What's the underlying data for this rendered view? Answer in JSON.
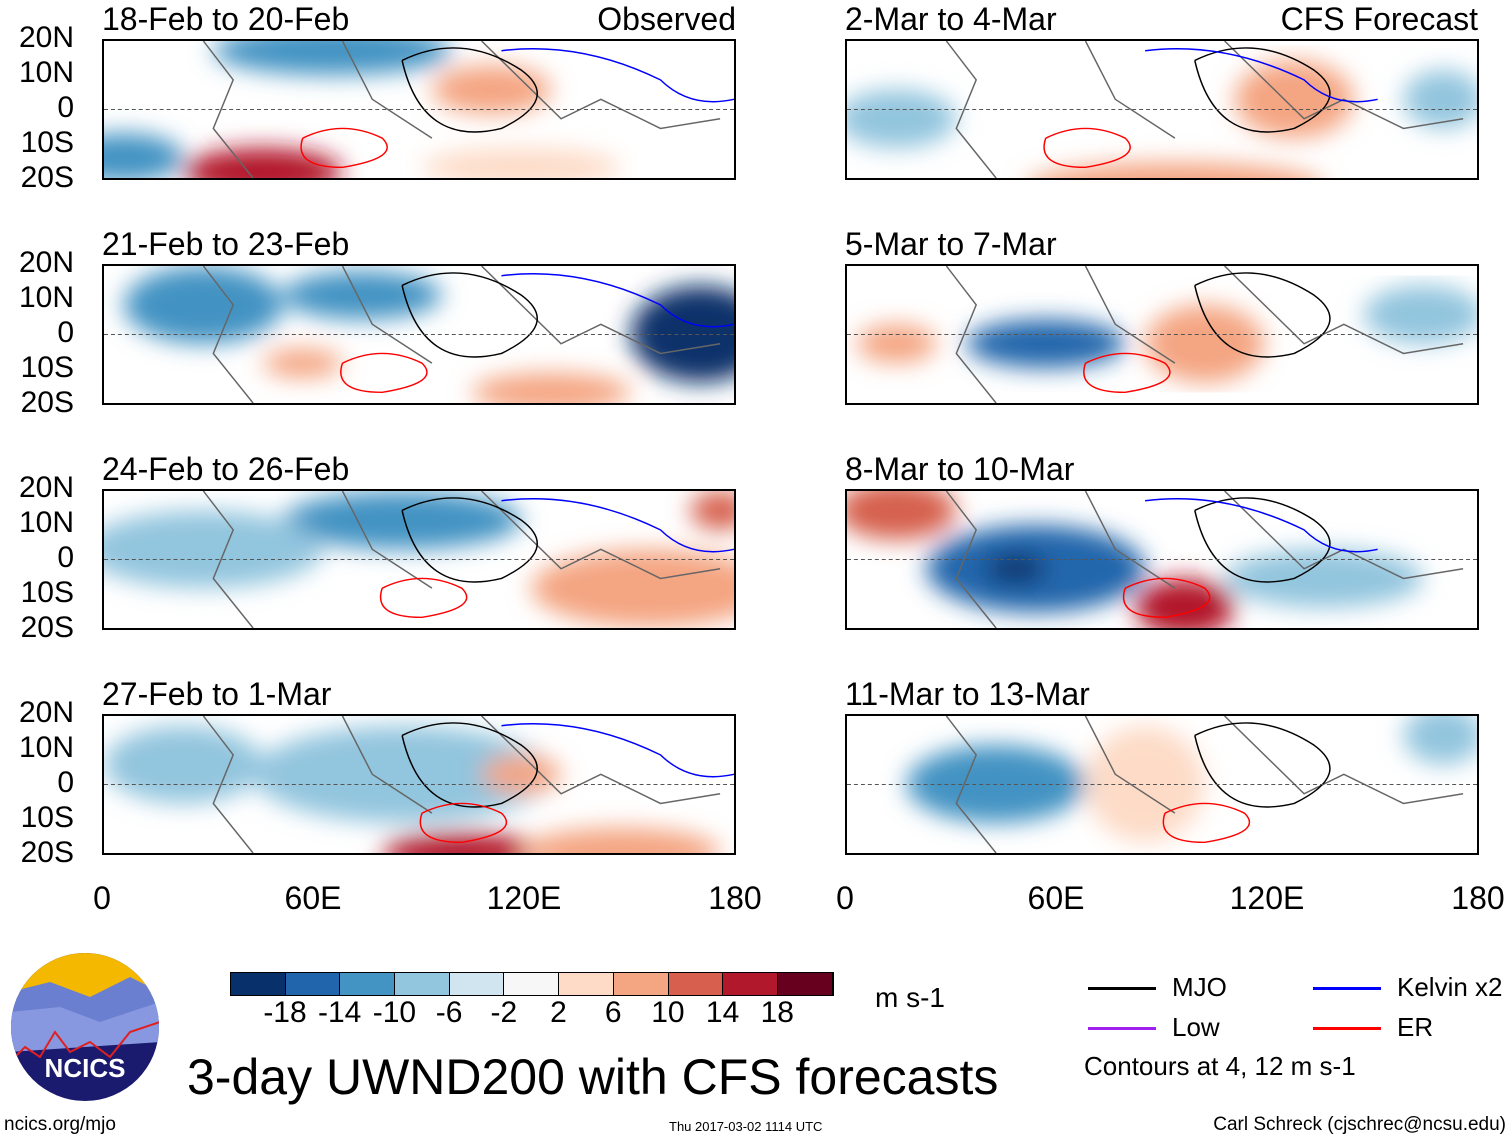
{
  "panels": {
    "observed_label": "Observed",
    "forecast_label": "CFS Forecast",
    "left": [
      "18-Feb to 20-Feb",
      "21-Feb to 23-Feb",
      "24-Feb to 26-Feb",
      "27-Feb to 1-Mar"
    ],
    "right": [
      "2-Mar to 4-Mar",
      "5-Mar to 7-Mar",
      "8-Mar to 10-Mar",
      "11-Mar to 13-Mar"
    ]
  },
  "lat_labels": [
    "20N",
    "10N",
    "0",
    "10S",
    "20S"
  ],
  "lon_labels": [
    "0",
    "60E",
    "120E",
    "180"
  ],
  "colorbar": {
    "colors": [
      "#08306b",
      "#2166ac",
      "#4393c3",
      "#92c5de",
      "#d1e5f0",
      "#f7f7f7",
      "#fddbc7",
      "#f4a582",
      "#d6604d",
      "#b2182b",
      "#67001f"
    ],
    "labels": [
      "-18",
      "-14",
      "-10",
      "-6",
      "-2",
      "2",
      "6",
      "10",
      "14",
      "18"
    ],
    "units": "m s-1"
  },
  "legend": {
    "items": [
      {
        "label": "MJO",
        "color": "#000000"
      },
      {
        "label": "Kelvin x2",
        "color": "#0000ff"
      },
      {
        "label": "Low",
        "color": "#a020f0"
      },
      {
        "label": "ER",
        "color": "#ff0000"
      }
    ],
    "note": "Contours at 4, 12 m s-1"
  },
  "logo_text": "NCICS",
  "title": "3-day UWND200 with CFS forecasts",
  "footer": {
    "url": "ncics.org/mjo",
    "timestamp": "Thu 2017-03-02 1114 UTC",
    "credit": "Carl Schreck (cjschrec@ncsu.edu)"
  }
}
